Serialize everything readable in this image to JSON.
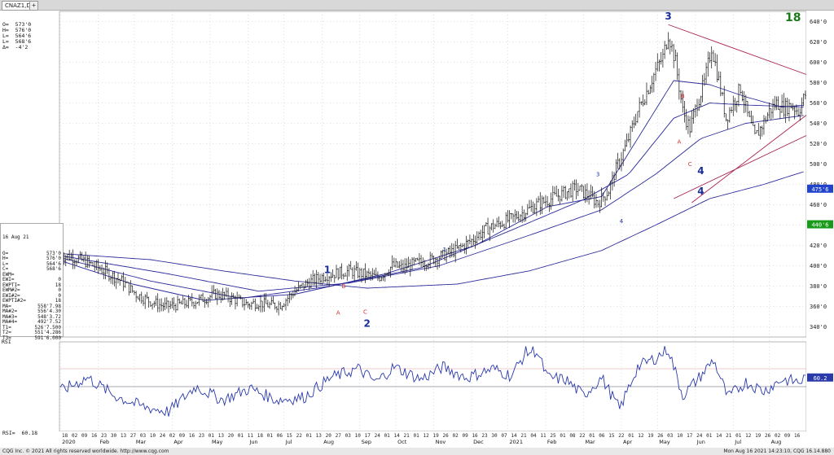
{
  "tab": {
    "label": "CNAZ1,D"
  },
  "header_ohlc": [
    {
      "label": "O=",
      "value": "573'0"
    },
    {
      "label": "H=",
      "value": "576'0"
    },
    {
      "label": "L=",
      "value": "564'6"
    },
    {
      "label": "L=",
      "value": "568'6"
    },
    {
      "label": "Δ=",
      "value": "-4'2"
    }
  ],
  "count_label": "18",
  "info": {
    "date": "16 Aug 21",
    "rows": [
      {
        "label": "O=",
        "value": "573'0"
      },
      {
        "label": "H=",
        "value": "576'0"
      },
      {
        "label": "L=",
        "value": "564'6"
      },
      {
        "label": "C=",
        "value": "568'6"
      },
      {
        "label": "EWM=",
        "value": ""
      },
      {
        "label": "EWI=",
        "value": "0"
      },
      {
        "label": "EWPTI=",
        "value": "18"
      },
      {
        "label": "EWM#2=",
        "value": "0"
      },
      {
        "label": "EWI#2=",
        "value": "0"
      },
      {
        "label": "EWPTI#2=",
        "value": "18"
      },
      {
        "label": "MA=",
        "value": "558'7.98"
      },
      {
        "label": "MA#2=",
        "value": "556'4.30"
      },
      {
        "label": "MA#3=",
        "value": "548'3.72"
      },
      {
        "label": "MA#4=",
        "value": "492'7.52"
      },
      {
        "label": "T1=",
        "value": "526'7.500"
      },
      {
        "label": "T2=",
        "value": "551'4.286"
      },
      {
        "label": "T3=",
        "value": "591'6.000"
      }
    ]
  },
  "rsi": {
    "label": "RSI",
    "info_label": "RSI=",
    "info_value": "60.18",
    "last": "60.2"
  },
  "price_badges": [
    {
      "value": 475.75,
      "text": "475'6",
      "color": "#2244cc"
    },
    {
      "value": 440.75,
      "text": "440'6",
      "color": "#1a9a1a"
    }
  ],
  "footer": {
    "left": "CQG Inc. © 2021 All rights reserved worldwide. http://www.cqg.com",
    "right": "Mon Aug 16 2021 14:23:10, CQG 16.14.880"
  },
  "colors": {
    "grid": "#c8c8c8",
    "bars": "#111111",
    "ma": "#2c2c9a",
    "trend": "#aa2255",
    "wave_major": "#1a2f9a",
    "wave_minor": "#cc3333",
    "rsi": "#2a3aaa"
  },
  "chart_data": {
    "type": "ohlc-bar",
    "ylim": [
      330,
      650
    ],
    "y_ticks": [
      "340'0",
      "360'0",
      "380'0",
      "400'0",
      "420'0",
      "440'0",
      "460'0",
      "480'0",
      "500'0",
      "520'0",
      "540'0",
      "560'0",
      "580'0",
      "600'0",
      "620'0",
      "640'0"
    ],
    "y_tick_values": [
      340,
      360,
      380,
      400,
      420,
      440,
      460,
      480,
      500,
      520,
      540,
      560,
      580,
      600,
      620,
      640
    ],
    "months": [
      "2020",
      "Feb",
      "Mar",
      "Apr",
      "May",
      "Jun",
      "Jul",
      "Aug",
      "Sep",
      "Oct",
      "Nov",
      "Dec",
      "2021",
      "Feb",
      "Mar",
      "Apr",
      "May",
      "Jun",
      "Jul",
      "Aug"
    ],
    "day_ticks": "18 02 09 16 23 30 13 27 03 10 24 02 09 16 23 01 13 20 01 11 18 01 06 15 22 01 13 20 27 03 10 17 24 01 14 21 01 12 19 26 02 09 16 23 30 07 14 21 04 11 25 01 08 22 01 06 15 22 01 12 19 26 03 10 17 24 01 14 21 01 12 19 26 02 09 16",
    "price_waypoints": [
      [
        0,
        410
      ],
      [
        6,
        409
      ],
      [
        14,
        404
      ],
      [
        24,
        395
      ],
      [
        34,
        385
      ],
      [
        42,
        372
      ],
      [
        50,
        365
      ],
      [
        58,
        360
      ],
      [
        66,
        362
      ],
      [
        72,
        364
      ],
      [
        80,
        368
      ],
      [
        86,
        372
      ],
      [
        92,
        370
      ],
      [
        98,
        366
      ],
      [
        104,
        362
      ],
      [
        110,
        364
      ],
      [
        116,
        361
      ],
      [
        122,
        362
      ],
      [
        130,
        375
      ],
      [
        138,
        384
      ],
      [
        146,
        390
      ],
      [
        154,
        393
      ],
      [
        160,
        395
      ],
      [
        168,
        392
      ],
      [
        176,
        388
      ],
      [
        184,
        400
      ],
      [
        190,
        398
      ],
      [
        196,
        402
      ],
      [
        204,
        405
      ],
      [
        212,
        410
      ],
      [
        220,
        416
      ],
      [
        228,
        425
      ],
      [
        236,
        436
      ],
      [
        244,
        442
      ],
      [
        250,
        446
      ],
      [
        256,
        452
      ],
      [
        264,
        460
      ],
      [
        272,
        466
      ],
      [
        280,
        472
      ],
      [
        286,
        476
      ],
      [
        292,
        470
      ],
      [
        298,
        462
      ],
      [
        304,
        474
      ],
      [
        308,
        495
      ],
      [
        314,
        520
      ],
      [
        320,
        552
      ],
      [
        326,
        575
      ],
      [
        330,
        592
      ],
      [
        334,
        605
      ],
      [
        337,
        628
      ],
      [
        341,
        600
      ],
      [
        345,
        552
      ],
      [
        349,
        535
      ],
      [
        353,
        560
      ],
      [
        357,
        580
      ],
      [
        361,
        615
      ],
      [
        365,
        582
      ],
      [
        369,
        545
      ],
      [
        373,
        560
      ],
      [
        377,
        575
      ],
      [
        381,
        548
      ],
      [
        385,
        526
      ],
      [
        389,
        538
      ],
      [
        393,
        552
      ],
      [
        397,
        560
      ],
      [
        401,
        555
      ],
      [
        405,
        558
      ],
      [
        409,
        552
      ],
      [
        413,
        568
      ]
    ],
    "num_bars": 414,
    "moving_averages": [
      {
        "name": "MA",
        "waypoints": [
          [
            0,
            405
          ],
          [
            40,
            382
          ],
          [
            80,
            366
          ],
          [
            130,
            372
          ],
          [
            180,
            392
          ],
          [
            230,
            420
          ],
          [
            270,
            458
          ],
          [
            300,
            468
          ],
          [
            320,
            525
          ],
          [
            340,
            582
          ],
          [
            360,
            578
          ],
          [
            380,
            566
          ],
          [
            400,
            556
          ],
          [
            413,
            558
          ]
        ]
      },
      {
        "name": "MA#2",
        "waypoints": [
          [
            0,
            408
          ],
          [
            50,
            385
          ],
          [
            100,
            368
          ],
          [
            150,
            380
          ],
          [
            200,
            398
          ],
          [
            250,
            435
          ],
          [
            290,
            465
          ],
          [
            315,
            490
          ],
          [
            340,
            545
          ],
          [
            360,
            560
          ],
          [
            380,
            558
          ],
          [
            413,
            556
          ]
        ]
      },
      {
        "name": "MA#3",
        "waypoints": [
          [
            0,
            410
          ],
          [
            60,
            392
          ],
          [
            110,
            375
          ],
          [
            160,
            383
          ],
          [
            210,
            400
          ],
          [
            260,
            430
          ],
          [
            300,
            455
          ],
          [
            330,
            490
          ],
          [
            355,
            525
          ],
          [
            380,
            540
          ],
          [
            413,
            548
          ]
        ]
      },
      {
        "name": "MA#4",
        "waypoints": [
          [
            0,
            412
          ],
          [
            50,
            406
          ],
          [
            90,
            395
          ],
          [
            130,
            385
          ],
          [
            170,
            378
          ],
          [
            220,
            382
          ],
          [
            260,
            395
          ],
          [
            300,
            415
          ],
          [
            330,
            440
          ],
          [
            360,
            466
          ],
          [
            390,
            480
          ],
          [
            413,
            493
          ]
        ]
      }
    ],
    "trendlines": [
      {
        "name": "resistance",
        "from": [
          337,
          637
        ],
        "to": [
          413,
          588
        ]
      },
      {
        "name": "support",
        "from": [
          340,
          466
        ],
        "to": [
          413,
          528
        ]
      },
      {
        "name": "lower",
        "from": [
          350,
          462
        ],
        "to": [
          413,
          548
        ]
      }
    ],
    "wave_labels": [
      {
        "text": "1",
        "bar": 148,
        "price": 393,
        "kind": "major"
      },
      {
        "text": "2",
        "bar": 170,
        "price": 340,
        "kind": "major"
      },
      {
        "text": "3",
        "bar": 337,
        "price": 642,
        "kind": "major"
      },
      {
        "text": "4",
        "bar": 355,
        "price": 490,
        "kind": "major"
      },
      {
        "text": "4",
        "bar": 355,
        "price": 470,
        "kind": "major"
      },
      {
        "text": "1",
        "bar": 213,
        "price": 414,
        "kind": "small"
      },
      {
        "text": "3",
        "bar": 298,
        "price": 488,
        "kind": "small"
      },
      {
        "text": "4",
        "bar": 311,
        "price": 442,
        "kind": "small"
      },
      {
        "text": "B",
        "bar": 157,
        "price": 378,
        "kind": "minor"
      },
      {
        "text": "A",
        "bar": 154,
        "price": 352,
        "kind": "minor"
      },
      {
        "text": "C",
        "bar": 169,
        "price": 353,
        "kind": "minor"
      },
      {
        "text": "B",
        "bar": 345,
        "price": 565,
        "kind": "minor"
      },
      {
        "text": "A",
        "bar": 343,
        "price": 520,
        "kind": "minor"
      },
      {
        "text": "C",
        "bar": 349,
        "price": 498,
        "kind": "minor"
      }
    ],
    "rsi": {
      "ylim": [
        0,
        100
      ],
      "ref_levels": [
        50,
        70
      ],
      "waypoints": [
        [
          0,
          45
        ],
        [
          15,
          60
        ],
        [
          30,
          40
        ],
        [
          45,
          28
        ],
        [
          60,
          22
        ],
        [
          75,
          50
        ],
        [
          90,
          35
        ],
        [
          105,
          48
        ],
        [
          120,
          35
        ],
        [
          135,
          38
        ],
        [
          150,
          60
        ],
        [
          165,
          70
        ],
        [
          175,
          55
        ],
        [
          185,
          72
        ],
        [
          200,
          58
        ],
        [
          212,
          72
        ],
        [
          225,
          60
        ],
        [
          240,
          70
        ],
        [
          250,
          62
        ],
        [
          258,
          88
        ],
        [
          264,
          90
        ],
        [
          270,
          60
        ],
        [
          280,
          58
        ],
        [
          290,
          40
        ],
        [
          300,
          60
        ],
        [
          310,
          25
        ],
        [
          320,
          72
        ],
        [
          330,
          82
        ],
        [
          337,
          92
        ],
        [
          345,
          40
        ],
        [
          355,
          62
        ],
        [
          362,
          80
        ],
        [
          370,
          38
        ],
        [
          380,
          55
        ],
        [
          390,
          45
        ],
        [
          400,
          58
        ],
        [
          410,
          55
        ],
        [
          413,
          60
        ]
      ]
    }
  }
}
